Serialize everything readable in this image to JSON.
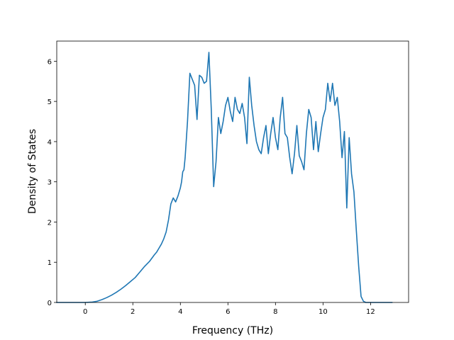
{
  "chart_data": {
    "type": "line",
    "title": "",
    "xlabel": "Frequency (THz)",
    "ylabel": "Density of States",
    "xlim": [
      -1.2,
      13.6
    ],
    "ylim": [
      0,
      6.5
    ],
    "xticks": [
      0,
      2,
      4,
      6,
      8,
      10,
      12
    ],
    "yticks": [
      0,
      1,
      2,
      3,
      4,
      5,
      6
    ],
    "xtick_labels": [
      "0",
      "2",
      "4",
      "6",
      "8",
      "10",
      "12"
    ],
    "ytick_labels": [
      "0",
      "1",
      "2",
      "3",
      "4",
      "5",
      "6"
    ],
    "grid": false,
    "legend": "none",
    "series": [
      {
        "color": "#1f77b4",
        "x": [
          -1.2,
          -0.6,
          0.0,
          0.3,
          0.5,
          0.7,
          0.9,
          1.1,
          1.3,
          1.5,
          1.7,
          1.9,
          2.1,
          2.3,
          2.5,
          2.7,
          2.9,
          3.0,
          3.1,
          3.2,
          3.3,
          3.4,
          3.5,
          3.6,
          3.7,
          3.8,
          3.9,
          4.0,
          4.05,
          4.1,
          4.15,
          4.2,
          4.3,
          4.4,
          4.5,
          4.6,
          4.7,
          4.8,
          4.9,
          5.0,
          5.1,
          5.2,
          5.3,
          5.4,
          5.5,
          5.6,
          5.7,
          5.8,
          5.9,
          6.0,
          6.1,
          6.2,
          6.3,
          6.4,
          6.5,
          6.6,
          6.7,
          6.8,
          6.9,
          7.0,
          7.1,
          7.2,
          7.3,
          7.4,
          7.5,
          7.6,
          7.7,
          7.8,
          7.9,
          8.0,
          8.1,
          8.2,
          8.3,
          8.4,
          8.5,
          8.6,
          8.7,
          8.8,
          8.9,
          9.0,
          9.1,
          9.2,
          9.3,
          9.4,
          9.5,
          9.6,
          9.7,
          9.8,
          9.9,
          10.0,
          10.1,
          10.2,
          10.3,
          10.4,
          10.5,
          10.6,
          10.7,
          10.8,
          10.9,
          11.0,
          11.1,
          11.2,
          11.3,
          11.4,
          11.5,
          11.6,
          11.7,
          11.8,
          12.0,
          12.5,
          12.9
        ],
        "y": [
          0.0,
          0.0,
          0.0,
          0.01,
          0.03,
          0.07,
          0.12,
          0.18,
          0.25,
          0.33,
          0.42,
          0.52,
          0.62,
          0.76,
          0.9,
          1.02,
          1.18,
          1.25,
          1.35,
          1.45,
          1.58,
          1.75,
          2.05,
          2.45,
          2.6,
          2.5,
          2.65,
          2.85,
          3.0,
          3.25,
          3.3,
          3.6,
          4.5,
          5.7,
          5.55,
          5.4,
          4.55,
          5.65,
          5.6,
          5.45,
          5.5,
          6.22,
          4.8,
          2.88,
          3.5,
          4.6,
          4.2,
          4.5,
          4.9,
          5.1,
          4.75,
          4.5,
          5.1,
          4.8,
          4.7,
          4.95,
          4.6,
          3.95,
          5.6,
          4.9,
          4.4,
          4.0,
          3.8,
          3.7,
          4.1,
          4.4,
          3.7,
          4.2,
          4.6,
          4.1,
          3.8,
          4.6,
          5.1,
          4.2,
          4.1,
          3.6,
          3.2,
          3.7,
          4.4,
          3.65,
          3.5,
          3.3,
          4.2,
          4.8,
          4.6,
          3.8,
          4.5,
          3.75,
          4.2,
          4.6,
          4.8,
          5.45,
          5.0,
          5.45,
          4.9,
          5.1,
          4.5,
          3.6,
          4.25,
          2.35,
          4.1,
          3.2,
          2.75,
          1.8,
          0.9,
          0.15,
          0.03,
          0.0,
          0.0,
          0.0,
          0.0
        ]
      }
    ]
  }
}
